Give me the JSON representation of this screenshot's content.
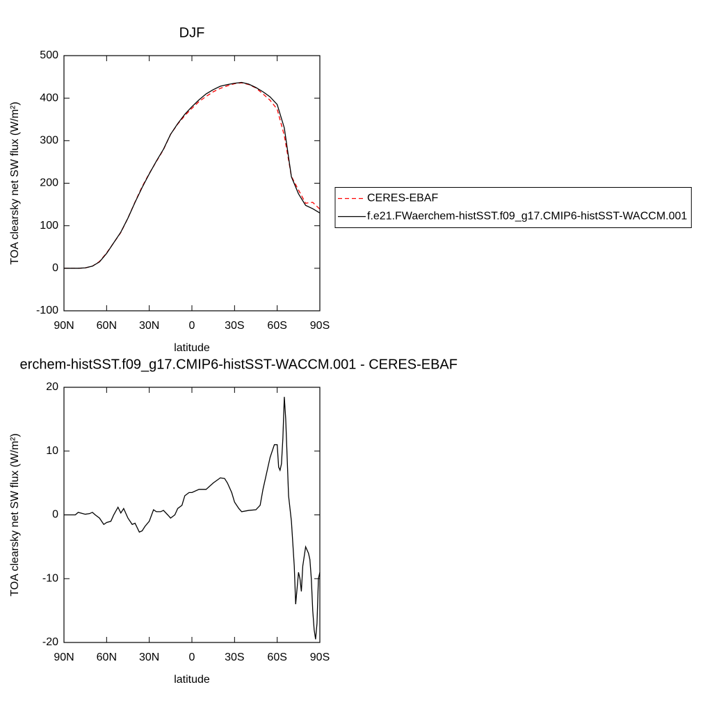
{
  "chart_data": [
    {
      "type": "line",
      "title": "DJF",
      "x_label": "latitude",
      "y_label": "TOA clearsky net SW flux (W/m²)",
      "x": [
        90,
        85,
        80,
        75,
        70,
        65,
        60,
        55,
        50,
        45,
        40,
        35,
        30,
        25,
        20,
        15,
        10,
        5,
        0,
        -5,
        -10,
        -15,
        -20,
        -25,
        -30,
        -35,
        -40,
        -45,
        -50,
        -55,
        -60,
        -65,
        -70,
        -75,
        -80,
        -85,
        -90
      ],
      "series": [
        {
          "name": "CERES-EBAF",
          "color": "#ff0000",
          "dashed": true,
          "values": [
            0,
            0,
            0,
            1,
            5,
            16,
            36,
            60,
            84,
            118,
            156,
            192,
            223,
            251,
            279,
            315,
            339,
            359,
            376,
            392,
            404,
            415,
            423,
            429,
            434,
            436,
            432,
            424,
            410,
            395,
            374,
            312,
            216,
            184,
            153,
            155,
            139
          ]
        },
        {
          "name": "f.e21.FWaerchem-histSST.f09_g17.CMIP6-histSST-WACCM.001",
          "color": "#000000",
          "dashed": false,
          "values": [
            0,
            0,
            0,
            1,
            5,
            15,
            35,
            60,
            85,
            118,
            155,
            190,
            222,
            252,
            280,
            315,
            340,
            362,
            380,
            396,
            410,
            420,
            428,
            432,
            435,
            437,
            433,
            425,
            415,
            403,
            385,
            330,
            215,
            175,
            148,
            140,
            130
          ]
        }
      ],
      "xlim": [
        90,
        -90
      ],
      "xticks": [
        {
          "value": 90,
          "label": "90N"
        },
        {
          "value": 60,
          "label": "60N"
        },
        {
          "value": 30,
          "label": "30N"
        },
        0,
        {
          "value": -30,
          "label": "30S"
        },
        {
          "value": -60,
          "label": "60S"
        },
        {
          "value": -90,
          "label": "90S"
        }
      ],
      "ylim": [
        -100,
        500
      ],
      "yticks": [
        -100,
        0,
        100,
        200,
        300,
        400,
        500
      ],
      "legend": "right"
    },
    {
      "type": "line",
      "title": "erchem-histSST.f09_g17.CMIP6-histSST-WACCM.001 - CERES-EBAF",
      "x_label": "latitude",
      "y_label": "TOA clearsky net SW flux (W/m²)",
      "x": [
        90,
        85,
        82,
        80,
        75,
        72,
        70,
        68,
        65,
        62,
        60,
        57,
        55,
        52,
        50,
        48,
        45,
        42,
        40,
        37,
        35,
        33,
        30,
        27,
        25,
        22,
        20,
        17,
        15,
        12,
        10,
        7,
        5,
        2,
        0,
        -5,
        -10,
        -15,
        -20,
        -23,
        -25,
        -28,
        -30,
        -33,
        -35,
        -40,
        -45,
        -48,
        -50,
        -53,
        -55,
        -58,
        -60,
        -61,
        -62,
        -63,
        -64,
        -65,
        -66,
        -67,
        -68,
        -70,
        -72,
        -73,
        -75,
        -76,
        -77,
        -78,
        -80,
        -82,
        -83,
        -84,
        -85,
        -86,
        -87,
        -88,
        -89,
        -90
      ],
      "series": [
        {
          "color": "#000000",
          "dashed": false,
          "values": [
            0,
            0,
            0,
            0.4,
            0.1,
            0.2,
            0.4,
            0,
            -0.5,
            -1.5,
            -1.2,
            -1,
            0,
            1.2,
            0.3,
            1,
            -0.5,
            -1.5,
            -1.3,
            -2.7,
            -2.5,
            -1.8,
            -1,
            0.8,
            0.5,
            0.5,
            0.7,
            0,
            -0.5,
            0,
            1,
            1.5,
            3,
            3.5,
            3.5,
            4,
            4,
            5,
            5.8,
            5.7,
            5,
            3.5,
            2,
            1,
            0.5,
            0.7,
            0.8,
            1.5,
            4,
            7,
            9,
            11,
            11,
            7.5,
            7,
            8,
            12,
            18.5,
            15,
            9,
            3,
            -1,
            -8,
            -14,
            -9,
            -10,
            -12,
            -8,
            -5,
            -6,
            -7,
            -10,
            -15,
            -18,
            -19.5,
            -17,
            -10,
            -9
          ]
        }
      ],
      "xlim": [
        90,
        -90
      ],
      "xticks": [
        {
          "value": 90,
          "label": "90N"
        },
        {
          "value": 60,
          "label": "60N"
        },
        {
          "value": 30,
          "label": "30N"
        },
        0,
        {
          "value": -30,
          "label": "30S"
        },
        {
          "value": -60,
          "label": "60S"
        },
        {
          "value": -90,
          "label": "90S"
        }
      ],
      "ylim": [
        -20,
        20
      ],
      "yticks": [
        -20,
        -10,
        0,
        10,
        20
      ]
    }
  ]
}
